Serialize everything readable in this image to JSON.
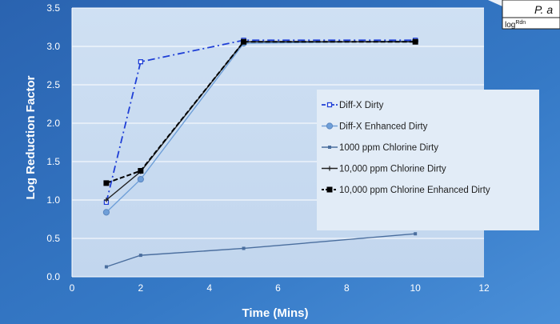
{
  "corner_box": {
    "header_text": "P. a",
    "sub_text": "log",
    "sub_superscript": "Rdn"
  },
  "chart_data": {
    "type": "line",
    "xlabel": "Time (Mins)",
    "ylabel": "Log Reduction Factor",
    "xlim": [
      0,
      12
    ],
    "ylim": [
      0,
      3.5
    ],
    "xticks": [
      0,
      2,
      4,
      6,
      8,
      10,
      12
    ],
    "yticks": [
      0.0,
      0.5,
      1.0,
      1.5,
      2.0,
      2.5,
      3.0,
      3.5
    ],
    "xtick_labels": [
      "0",
      "2",
      "4",
      "6",
      "8",
      "10",
      "12"
    ],
    "ytick_labels": [
      "0.0",
      "0.5",
      "1.0",
      "1.5",
      "2.0",
      "2.5",
      "3.0",
      "3.5"
    ],
    "grid": {
      "horizontal": true,
      "vertical": false
    },
    "legend_position": "right",
    "series": [
      {
        "name": "Diff-X Dirty",
        "x": [
          1,
          2,
          5,
          10
        ],
        "values": [
          0.97,
          2.8,
          3.08,
          3.08
        ],
        "color": "#1f3fd6",
        "style": "dashdot",
        "marker": "square-open"
      },
      {
        "name": "Diff-X Enhanced Dirty",
        "x": [
          1,
          2,
          5,
          10
        ],
        "values": [
          0.84,
          1.27,
          3.04,
          3.07
        ],
        "color": "#6f9fd8",
        "style": "solid",
        "marker": "circle"
      },
      {
        "name": "1000 ppm Chlorine Dirty",
        "x": [
          1,
          2,
          5,
          10
        ],
        "values": [
          0.13,
          0.28,
          0.37,
          0.56
        ],
        "color": "#4a6e9e",
        "style": "solid",
        "marker": "small-square"
      },
      {
        "name": "10,000 ppm Chlorine Dirty",
        "x": [
          1,
          2,
          5,
          10
        ],
        "values": [
          1.0,
          1.37,
          3.06,
          3.06
        ],
        "color": "#202020",
        "style": "solid",
        "marker": "plus"
      },
      {
        "name": "10,000 ppm Chlorine Enhanced Dirty",
        "x": [
          1,
          2,
          5,
          10
        ],
        "values": [
          1.22,
          1.38,
          3.06,
          3.06
        ],
        "color": "#000000",
        "style": "dashed",
        "marker": "square"
      }
    ]
  }
}
